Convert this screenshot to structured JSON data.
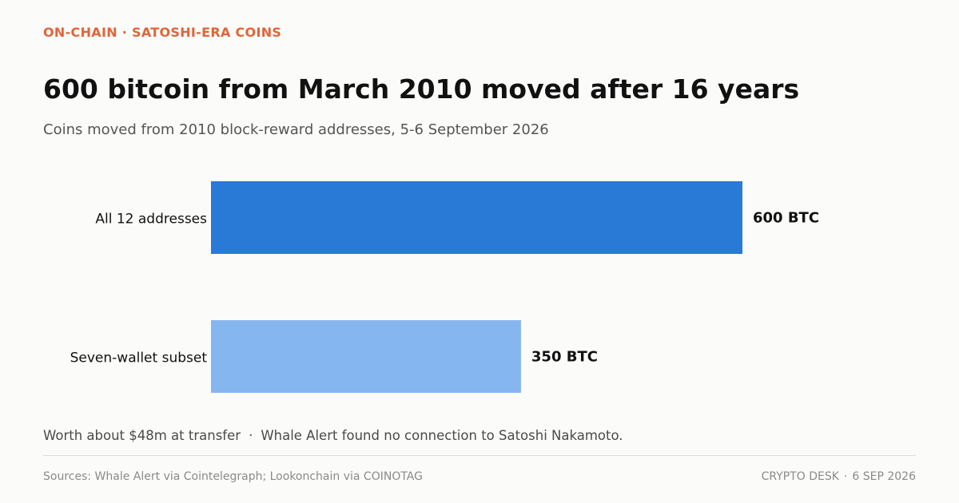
{
  "header": {
    "kicker": "ON-CHAIN · SATOSHI-ERA COINS",
    "title": "600 bitcoin from March 2010 moved after 16 years",
    "subtitle": "Coins moved from 2010 block-reward addresses, 5-6 September 2026"
  },
  "colors": {
    "kicker": "#e0653a",
    "bar_primary": "#2979d6",
    "bar_secondary": "#86b6ef",
    "label_text": "#111111"
  },
  "chart_data": {
    "type": "bar",
    "orientation": "horizontal",
    "categories": [
      "All 12 addresses",
      "Seven-wallet subset"
    ],
    "values": [
      600,
      350
    ],
    "value_labels": [
      "600 BTC",
      "350 BTC"
    ],
    "unit": "BTC",
    "title": "600 bitcoin from March 2010 moved after 16 years",
    "subtitle": "Coins moved from 2010 block-reward addresses, 5-6 September 2026",
    "xlabel": "",
    "ylabel": "",
    "grid": false,
    "legend": "none"
  },
  "footnote": {
    "left": "Worth about $48m at transfer",
    "separator": "·",
    "right": "Whale Alert found no connection to Satoshi Nakamoto."
  },
  "footer": {
    "sources": "Sources: Whale Alert via Cointelegraph; Lookonchain via COINOTAG",
    "desk": "CRYPTO DESK",
    "dot": "·",
    "date": "6 SEP 2026"
  }
}
